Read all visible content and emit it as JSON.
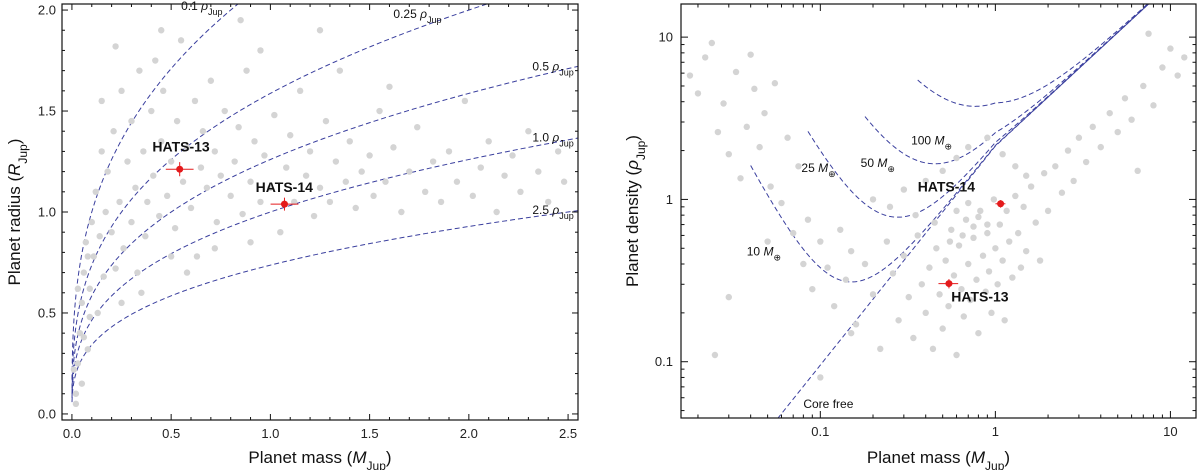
{
  "chart_data": [
    {
      "type": "scatter",
      "id": "radius",
      "xlabel": {
        "main": "Planet mass (",
        "italic": "M",
        "sub": "Jup",
        "end": ")"
      },
      "ylabel": {
        "main": "Planet radius (",
        "italic": "R",
        "sub": "Jup",
        "end": ")"
      },
      "xlim": [
        -0.05,
        2.55
      ],
      "ylim": [
        -0.03,
        2.03
      ],
      "x_ticks": [
        0.0,
        0.5,
        1.0,
        1.5,
        2.0,
        2.5
      ],
      "x_tick_labels": [
        "0.0",
        "0.5",
        "1.0",
        "1.5",
        "2.0",
        "2.5"
      ],
      "y_ticks": [
        0.0,
        0.5,
        1.0,
        1.5,
        2.0
      ],
      "y_tick_labels": [
        "0.0",
        "0.5",
        "1.0",
        "1.5",
        "2.0"
      ],
      "grid": false,
      "density_curves": [
        {
          "rho": 0.1,
          "label_value": "0.1",
          "label_symbol": "ρ",
          "label_sub": "Jup",
          "label_at": [
            0.55,
            2.0
          ]
        },
        {
          "rho": 0.25,
          "label_value": "0.25",
          "label_symbol": "ρ",
          "label_sub": "Jup",
          "label_at": [
            1.62,
            1.96
          ]
        },
        {
          "rho": 0.5,
          "label_value": "0.5",
          "label_symbol": "ρ",
          "label_sub": "Jup",
          "label_at": [
            2.32,
            1.7
          ]
        },
        {
          "rho": 1.0,
          "label_value": "1.0",
          "label_symbol": "ρ",
          "label_sub": "Jup",
          "label_at": [
            2.32,
            1.35
          ]
        },
        {
          "rho": 2.5,
          "label_value": "2.5",
          "label_symbol": "ρ",
          "label_sub": "Jup",
          "label_at": [
            2.32,
            0.99
          ]
        }
      ],
      "highlighted": [
        {
          "name": "HATS-13",
          "mass": 0.543,
          "radius": 1.212,
          "xerr": 0.07,
          "yerr": 0.035,
          "label_at": [
            0.55,
            1.3
          ]
        },
        {
          "name": "HATS-14",
          "mass": 1.071,
          "radius": 1.039,
          "xerr": 0.07,
          "yerr": 0.032,
          "label_at": [
            1.07,
            1.1
          ]
        }
      ],
      "background_points": [
        [
          0.02,
          0.1
        ],
        [
          0.03,
          0.25
        ],
        [
          0.04,
          0.4
        ],
        [
          0.05,
          0.55
        ],
        [
          0.06,
          0.7
        ],
        [
          0.07,
          0.85
        ],
        [
          0.08,
          0.32
        ],
        [
          0.09,
          0.62
        ],
        [
          0.1,
          0.95
        ],
        [
          0.11,
          0.78
        ],
        [
          0.12,
          1.1
        ],
        [
          0.13,
          0.5
        ],
        [
          0.14,
          0.88
        ],
        [
          0.15,
          1.3
        ],
        [
          0.16,
          0.68
        ],
        [
          0.17,
          1.0
        ],
        [
          0.18,
          1.2
        ],
        [
          0.2,
          0.9
        ],
        [
          0.21,
          1.4
        ],
        [
          0.22,
          0.72
        ],
        [
          0.24,
          1.05
        ],
        [
          0.25,
          1.6
        ],
        [
          0.26,
          0.82
        ],
        [
          0.28,
          1.25
        ],
        [
          0.3,
          1.45
        ],
        [
          0.3,
          0.95
        ],
        [
          0.32,
          1.12
        ],
        [
          0.33,
          0.7
        ],
        [
          0.34,
          1.7
        ],
        [
          0.36,
          1.3
        ],
        [
          0.37,
          0.88
        ],
        [
          0.38,
          1.05
        ],
        [
          0.4,
          1.5
        ],
        [
          0.41,
          1.18
        ],
        [
          0.42,
          1.75
        ],
        [
          0.44,
          0.98
        ],
        [
          0.45,
          1.35
        ],
        [
          0.46,
          1.6
        ],
        [
          0.48,
          1.08
        ],
        [
          0.5,
          1.25
        ],
        [
          0.52,
          0.92
        ],
        [
          0.53,
          1.45
        ],
        [
          0.55,
          1.85
        ],
        [
          0.56,
          1.15
        ],
        [
          0.58,
          1.32
        ],
        [
          0.6,
          1.02
        ],
        [
          0.62,
          1.55
        ],
        [
          0.63,
          0.78
        ],
        [
          0.65,
          1.22
        ],
        [
          0.66,
          1.4
        ],
        [
          0.68,
          1.12
        ],
        [
          0.7,
          1.65
        ],
        [
          0.72,
          1.3
        ],
        [
          0.73,
          0.95
        ],
        [
          0.75,
          1.18
        ],
        [
          0.77,
          1.5
        ],
        [
          0.8,
          1.08
        ],
        [
          0.82,
          1.25
        ],
        [
          0.84,
          1.42
        ],
        [
          0.86,
          0.99
        ],
        [
          0.88,
          1.7
        ],
        [
          0.9,
          1.15
        ],
        [
          0.92,
          1.35
        ],
        [
          0.95,
          1.05
        ],
        [
          0.97,
          1.28
        ],
        [
          1.0,
          1.12
        ],
        [
          1.02,
          1.48
        ],
        [
          1.05,
          0.9
        ],
        [
          1.08,
          1.22
        ],
        [
          1.1,
          1.38
        ],
        [
          1.12,
          1.05
        ],
        [
          1.15,
          1.6
        ],
        [
          1.18,
          1.18
        ],
        [
          1.2,
          1.3
        ],
        [
          1.22,
          0.98
        ],
        [
          1.25,
          1.12
        ],
        [
          1.28,
          1.45
        ],
        [
          1.3,
          1.05
        ],
        [
          1.33,
          1.25
        ],
        [
          1.35,
          1.7
        ],
        [
          1.38,
          1.15
        ],
        [
          1.4,
          1.35
        ],
        [
          1.43,
          1.02
        ],
        [
          1.46,
          1.2
        ],
        [
          1.5,
          1.28
        ],
        [
          1.52,
          1.08
        ],
        [
          1.55,
          1.5
        ],
        [
          1.58,
          1.15
        ],
        [
          1.62,
          1.32
        ],
        [
          1.66,
          1.0
        ],
        [
          1.7,
          1.2
        ],
        [
          1.74,
          1.42
        ],
        [
          1.78,
          1.1
        ],
        [
          1.82,
          1.25
        ],
        [
          1.86,
          1.05
        ],
        [
          1.9,
          1.3
        ],
        [
          1.94,
          1.15
        ],
        [
          1.98,
          1.55
        ],
        [
          2.02,
          1.08
        ],
        [
          2.06,
          1.22
        ],
        [
          2.1,
          1.35
        ],
        [
          2.14,
          1.0
        ],
        [
          2.18,
          1.18
        ],
        [
          2.22,
          1.28
        ],
        [
          2.26,
          1.1
        ],
        [
          2.3,
          1.4
        ],
        [
          2.35,
          1.2
        ],
        [
          2.4,
          1.05
        ],
        [
          2.45,
          1.3
        ],
        [
          2.48,
          1.15
        ],
        [
          0.85,
          1.95
        ],
        [
          1.25,
          1.9
        ],
        [
          0.45,
          1.9
        ],
        [
          0.95,
          1.8
        ],
        [
          0.22,
          1.82
        ],
        [
          1.6,
          1.62
        ],
        [
          0.15,
          1.55
        ],
        [
          0.35,
          0.6
        ],
        [
          0.58,
          0.7
        ],
        [
          0.9,
          0.85
        ],
        [
          0.72,
          0.82
        ],
        [
          0.5,
          0.78
        ],
        [
          0.25,
          0.55
        ],
        [
          0.08,
          0.78
        ],
        [
          0.05,
          0.15
        ],
        [
          0.02,
          0.05
        ],
        [
          0.01,
          0.22
        ],
        [
          0.03,
          0.62
        ],
        [
          0.06,
          0.38
        ],
        [
          0.09,
          0.48
        ]
      ]
    },
    {
      "type": "scatter",
      "id": "density",
      "xscale": "log",
      "yscale": "log",
      "xlabel": {
        "main": "Planet mass (",
        "italic": "M",
        "sub": "Jup",
        "end": ")"
      },
      "ylabel": {
        "main": "Planet density (",
        "italic": "ρ",
        "sub": "Jup",
        "end": ")"
      },
      "xlim": [
        0.016,
        14
      ],
      "ylim": [
        0.045,
        16
      ],
      "x_ticks": [
        0.1,
        1,
        10
      ],
      "x_tick_labels": [
        "0.1",
        "1",
        "10"
      ],
      "y_ticks": [
        0.1,
        1,
        10
      ],
      "y_tick_labels": [
        "0.1",
        "1",
        "10"
      ],
      "grid": false,
      "core_curves": [
        {
          "core_mearth": 10,
          "label_value": "10",
          "label_symbol": "M",
          "label_sub": "⊕",
          "label_at": [
            0.038,
            0.45
          ]
        },
        {
          "core_mearth": 25,
          "label_value": "25",
          "label_symbol": "M",
          "label_sub": "⊕",
          "label_at": [
            0.078,
            1.48
          ]
        },
        {
          "core_mearth": 50,
          "label_value": "50",
          "label_symbol": "M",
          "label_sub": "⊕",
          "label_at": [
            0.17,
            1.58
          ]
        },
        {
          "core_mearth": 100,
          "label_value": "100",
          "label_symbol": "M",
          "label_sub": "⊕",
          "label_at": [
            0.33,
            2.18
          ]
        }
      ],
      "core_free_label": {
        "text": "Core free",
        "at": [
          0.08,
          0.052
        ]
      },
      "highlighted": [
        {
          "name": "HATS-13",
          "mass": 0.543,
          "density": 0.303,
          "xerr": 0.07,
          "yerr": 0.02,
          "label_at": [
            0.56,
            0.235
          ]
        },
        {
          "name": "HATS-14",
          "mass": 1.071,
          "density": 0.94,
          "xerr": 0.07,
          "yerr": 0.05,
          "label_at": [
            0.36,
            1.12
          ]
        }
      ],
      "background_points": [
        [
          0.018,
          5.8
        ],
        [
          0.02,
          4.5
        ],
        [
          0.022,
          7.5
        ],
        [
          0.024,
          9.2
        ],
        [
          0.026,
          2.6
        ],
        [
          0.028,
          3.9
        ],
        [
          0.03,
          1.9
        ],
        [
          0.033,
          6.1
        ],
        [
          0.035,
          1.35
        ],
        [
          0.038,
          2.8
        ],
        [
          0.04,
          7.8
        ],
        [
          0.042,
          4.8
        ],
        [
          0.045,
          2.1
        ],
        [
          0.048,
          3.4
        ],
        [
          0.052,
          1.2
        ],
        [
          0.055,
          5.2
        ],
        [
          0.06,
          0.95
        ],
        [
          0.065,
          2.4
        ],
        [
          0.07,
          0.62
        ],
        [
          0.075,
          1.6
        ],
        [
          0.08,
          0.4
        ],
        [
          0.085,
          0.75
        ],
        [
          0.09,
          0.28
        ],
        [
          0.1,
          0.55
        ],
        [
          0.11,
          0.38
        ],
        [
          0.12,
          0.22
        ],
        [
          0.13,
          0.65
        ],
        [
          0.14,
          0.32
        ],
        [
          0.15,
          0.48
        ],
        [
          0.16,
          0.17
        ],
        [
          0.18,
          0.4
        ],
        [
          0.2,
          0.26
        ],
        [
          0.22,
          0.12
        ],
        [
          0.24,
          0.55
        ],
        [
          0.26,
          0.35
        ],
        [
          0.28,
          0.18
        ],
        [
          0.3,
          0.45
        ],
        [
          0.32,
          0.25
        ],
        [
          0.34,
          0.14
        ],
        [
          0.36,
          0.6
        ],
        [
          0.38,
          0.3
        ],
        [
          0.4,
          0.2
        ],
        [
          0.42,
          0.38
        ],
        [
          0.44,
          0.12
        ],
        [
          0.46,
          0.5
        ],
        [
          0.48,
          0.26
        ],
        [
          0.5,
          0.16
        ],
        [
          0.52,
          0.42
        ],
        [
          0.54,
          0.22
        ],
        [
          0.56,
          0.65
        ],
        [
          0.58,
          0.34
        ],
        [
          0.6,
          0.11
        ],
        [
          0.62,
          0.52
        ],
        [
          0.64,
          0.28
        ],
        [
          0.66,
          0.19
        ],
        [
          0.68,
          0.75
        ],
        [
          0.7,
          0.4
        ],
        [
          0.72,
          0.24
        ],
        [
          0.75,
          0.58
        ],
        [
          0.78,
          0.32
        ],
        [
          0.8,
          0.15
        ],
        [
          0.82,
          0.85
        ],
        [
          0.85,
          0.45
        ],
        [
          0.88,
          0.27
        ],
        [
          0.9,
          0.62
        ],
        [
          0.92,
          0.36
        ],
        [
          0.95,
          0.2
        ],
        [
          0.98,
          1.0
        ],
        [
          1.0,
          0.5
        ],
        [
          1.03,
          0.3
        ],
        [
          1.06,
          0.7
        ],
        [
          1.1,
          0.42
        ],
        [
          1.13,
          0.18
        ],
        [
          1.16,
          0.85
        ],
        [
          1.2,
          0.55
        ],
        [
          1.25,
          0.33
        ],
        [
          1.3,
          1.05
        ],
        [
          1.35,
          0.62
        ],
        [
          1.4,
          0.38
        ],
        [
          1.45,
          0.9
        ],
        [
          1.5,
          0.48
        ],
        [
          1.6,
          1.2
        ],
        [
          1.7,
          0.72
        ],
        [
          1.8,
          0.42
        ],
        [
          1.9,
          1.45
        ],
        [
          2.0,
          0.85
        ],
        [
          2.2,
          1.6
        ],
        [
          2.4,
          1.1
        ],
        [
          2.6,
          2.0
        ],
        [
          2.8,
          1.3
        ],
        [
          3.0,
          2.4
        ],
        [
          3.3,
          1.7
        ],
        [
          3.6,
          2.8
        ],
        [
          4.0,
          2.1
        ],
        [
          4.5,
          3.4
        ],
        [
          5.0,
          2.6
        ],
        [
          5.5,
          4.2
        ],
        [
          6.0,
          3.1
        ],
        [
          6.5,
          1.5
        ],
        [
          7.0,
          5.0
        ],
        [
          7.5,
          10.5
        ],
        [
          8.0,
          3.8
        ],
        [
          9.0,
          6.5
        ],
        [
          10.0,
          8.5
        ],
        [
          11.0,
          5.8
        ],
        [
          12.0,
          7.5
        ],
        [
          0.6,
          0.85
        ],
        [
          0.7,
          0.95
        ],
        [
          0.8,
          0.78
        ],
        [
          0.9,
          0.7
        ],
        [
          0.65,
          0.6
        ],
        [
          0.75,
          0.68
        ],
        [
          0.55,
          0.55
        ],
        [
          0.45,
          0.72
        ],
        [
          0.35,
          0.8
        ],
        [
          0.25,
          0.9
        ],
        [
          0.2,
          1.0
        ],
        [
          0.3,
          1.15
        ],
        [
          0.4,
          1.3
        ],
        [
          0.5,
          1.5
        ],
        [
          0.6,
          1.8
        ],
        [
          0.7,
          2.1
        ],
        [
          0.9,
          2.4
        ],
        [
          1.1,
          1.9
        ],
        [
          1.3,
          1.6
        ],
        [
          1.5,
          1.4
        ],
        [
          0.15,
          0.15
        ],
        [
          0.1,
          0.08
        ],
        [
          0.05,
          0.55
        ],
        [
          0.025,
          0.11
        ],
        [
          0.03,
          0.25
        ]
      ]
    }
  ]
}
